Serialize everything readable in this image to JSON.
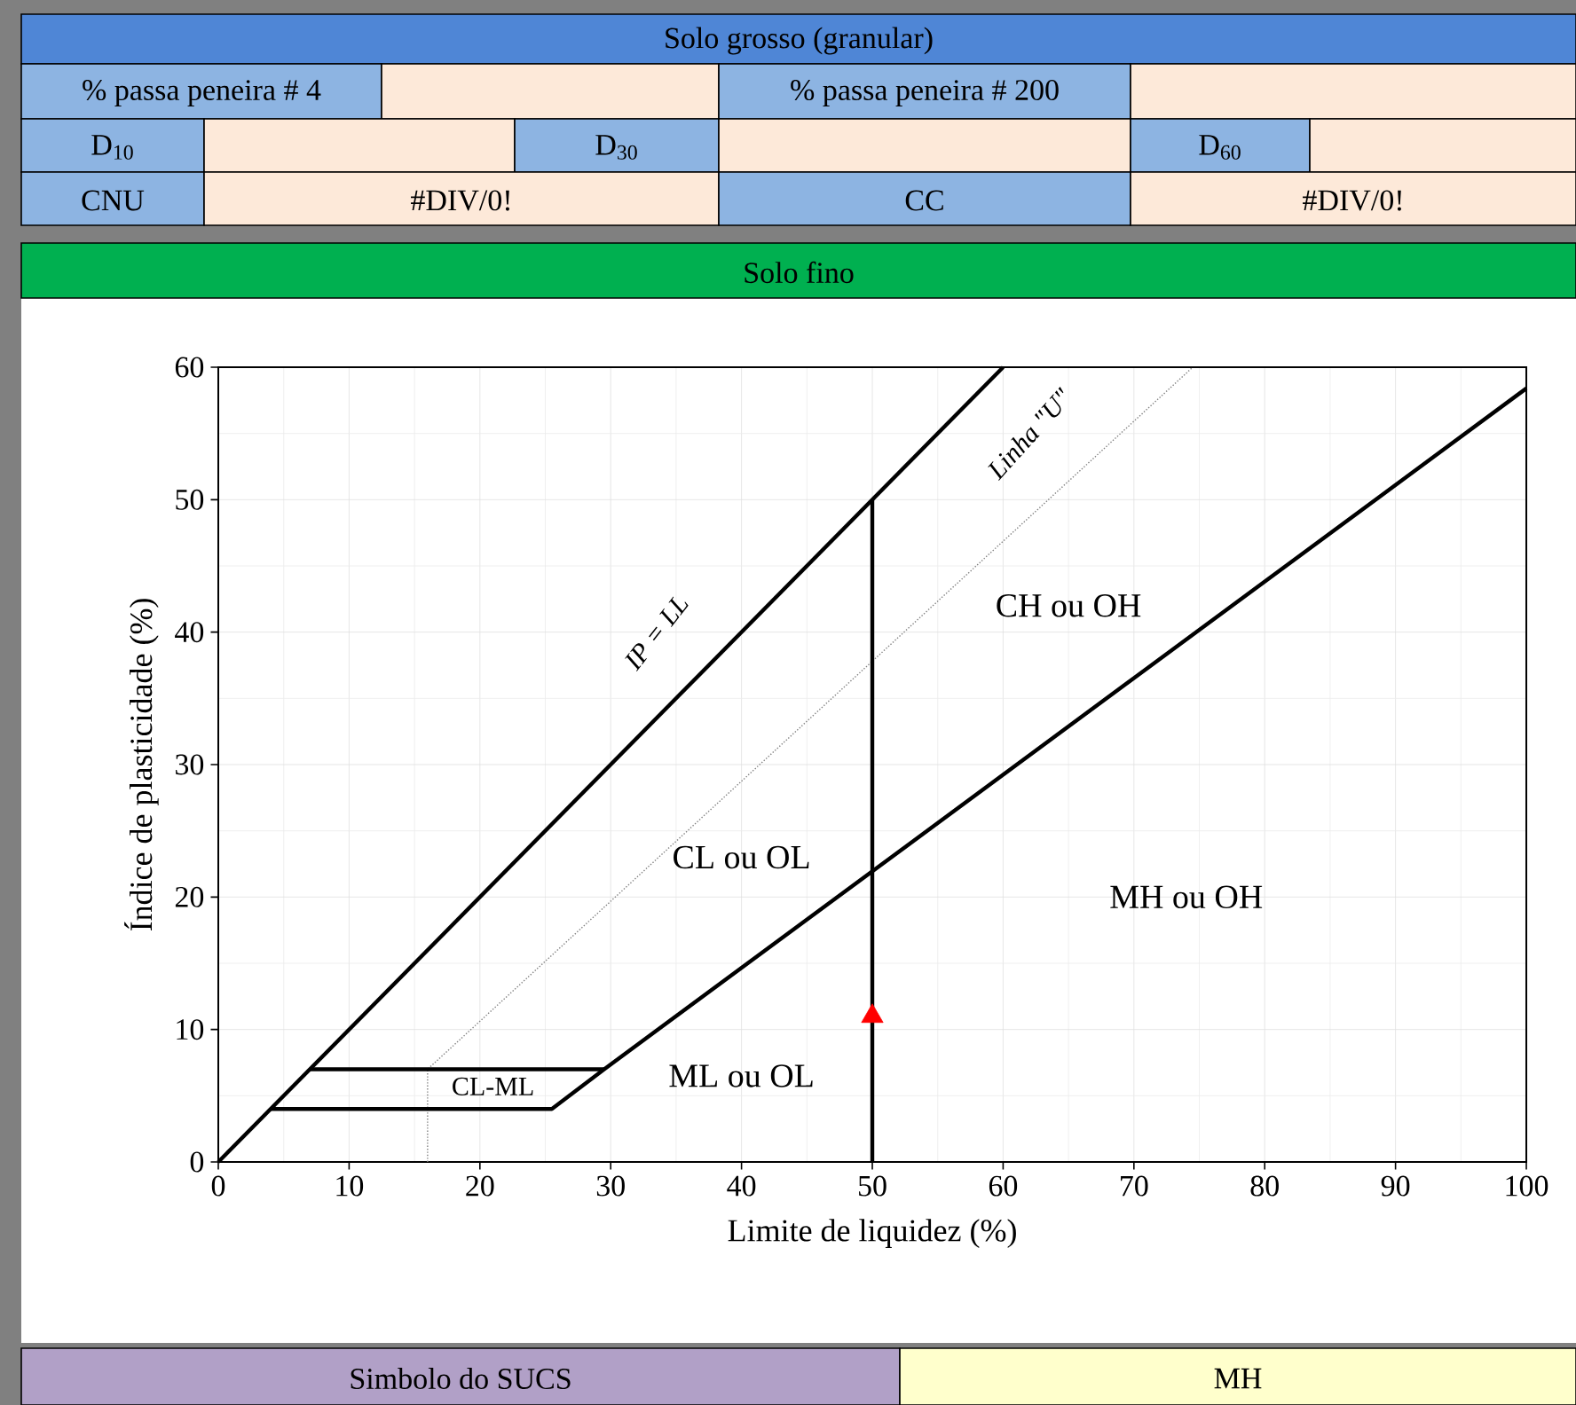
{
  "chart_data": {
    "type": "line",
    "xlabel": "Limite de liquidez (%)",
    "ylabel": "Índice de plasticidade (%)",
    "xlim": [
      0,
      100
    ],
    "ylim": [
      0,
      60
    ],
    "xticks": [
      0,
      10,
      20,
      30,
      40,
      50,
      60,
      70,
      80,
      90,
      100
    ],
    "yticks": [
      0,
      10,
      20,
      30,
      40,
      50,
      60
    ],
    "grid": true,
    "series": [
      {
        "color": "#000000",
        "x": [
          0,
          60
        ],
        "values": [
          0,
          60
        ]
      },
      {
        "color": "#808080",
        "line_style": "dotted",
        "x": [
          16,
          16,
          74.5
        ],
        "values": [
          0,
          7,
          60
        ]
      },
      {
        "color": "#000000",
        "x": [
          4,
          25.5,
          29.5,
          100
        ],
        "values": [
          4,
          4,
          7,
          58.4
        ]
      },
      {
        "color": "#000000",
        "x": [
          7,
          29.5
        ],
        "values": [
          7,
          7
        ]
      },
      {
        "color": "#000000",
        "x": [
          50,
          50
        ],
        "values": [
          0,
          50
        ]
      },
      {
        "type": "scatter",
        "marker": "triangle",
        "color": "#ff0000",
        "x": [
          50
        ],
        "values": [
          11
        ]
      }
    ],
    "annotations": [
      "Solo grosso (granular)",
      "% passa peneira # 4",
      "% passa peneira # 200",
      "D$_{10}$",
      "D$_{30}$",
      "D$_{60}$",
      "CNU",
      "#DIV/0!",
      "CC",
      "#DIV/0!",
      "Solo fino",
      "Simbolo do SUCS",
      "MH",
      "CH ou OH",
      "CL ou OL",
      "MH ou OH",
      "ML ou OL",
      "CL-ML",
      "IP = LL",
      "Linha \"U\""
    ]
  }
}
